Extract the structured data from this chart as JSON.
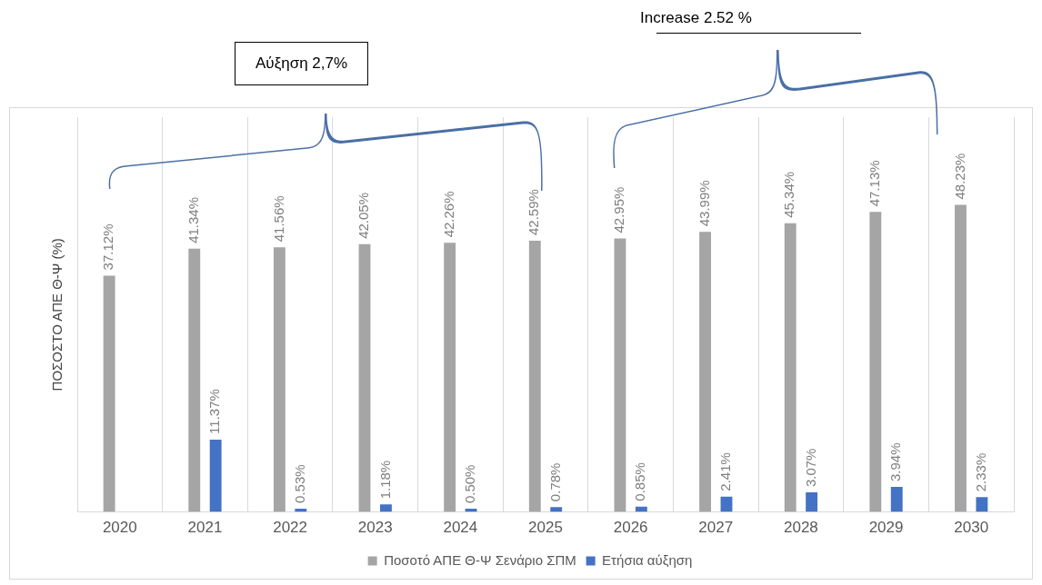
{
  "chart_data": {
    "type": "bar",
    "ylabel": "ΠΟΣΟΣΤΟ ΑΠΕ Θ-Ψ (%)",
    "categories": [
      "2020",
      "2021",
      "2022",
      "2023",
      "2024",
      "2025",
      "2026",
      "2027",
      "2028",
      "2029",
      "2030"
    ],
    "series": [
      {
        "name": "Ποσοτό ΑΠΕ Θ-Ψ Σενάριο ΣΠΜ",
        "color": "#a5a5a5",
        "values": [
          37.12,
          41.34,
          41.56,
          42.05,
          42.26,
          42.59,
          42.95,
          43.99,
          45.34,
          47.13,
          48.23
        ],
        "value_labels": [
          "37.12%",
          "41.34%",
          "41.56%",
          "42.05%",
          "42.26%",
          "42.59%",
          "42.95%",
          "43.99%",
          "45.34%",
          "47.13%",
          "48.23%"
        ]
      },
      {
        "name": "Ετήσια αύξηση",
        "color": "#4472c4",
        "values": [
          null,
          11.37,
          0.53,
          1.18,
          0.5,
          0.78,
          0.85,
          2.41,
          3.07,
          3.94,
          2.33
        ],
        "value_labels": [
          null,
          "11.37%",
          "0.53%",
          "1.18%",
          "0.50%",
          "0.78%",
          "0.85%",
          "2.41%",
          "3.07%",
          "3.94%",
          "2.33%"
        ]
      }
    ],
    "ylim": [
      0,
      62
    ],
    "grid": "x",
    "legend": "bottom",
    "annotations": [
      "Αύξηση 2,7%",
      "Increase 2.52 %"
    ]
  }
}
